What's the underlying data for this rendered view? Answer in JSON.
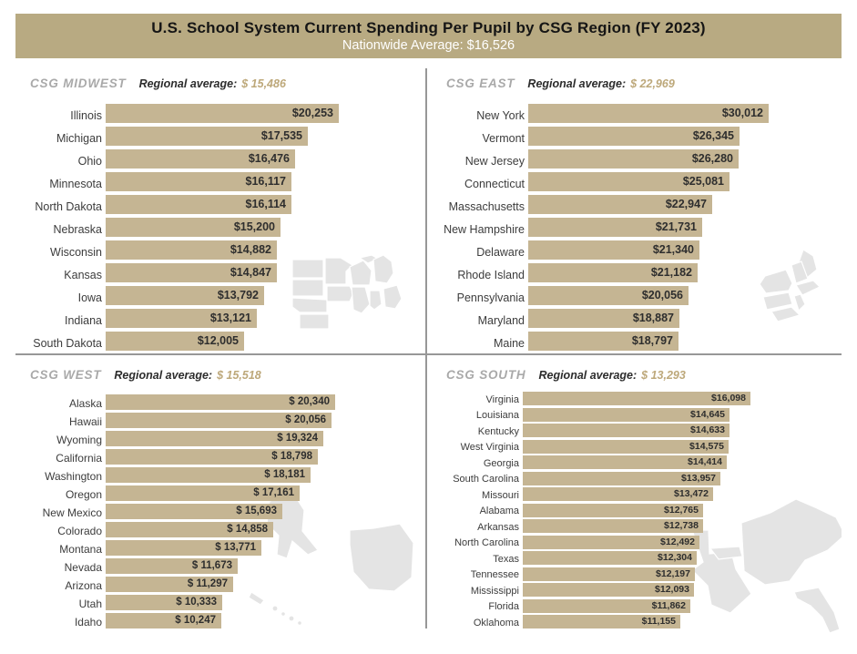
{
  "header": {
    "title": "U.S. School System Current Spending Per Pupil by CSG Region (FY 2023)",
    "subtitle": "Nationwide Average: $16,526"
  },
  "colors": {
    "header_bg": "#b8aa82",
    "bar": "#c5b593",
    "accent_text": "#bda87a",
    "region_label": "#a9a9a9",
    "divider": "#979797",
    "map": "#e4e4e4"
  },
  "chart_data": [
    {
      "type": "bar",
      "title": "CSG MIDWEST",
      "avg_label": "Regional average:",
      "avg_value": "$ 15,486",
      "categories": [
        "Illinois",
        "Michigan",
        "Ohio",
        "Minnesota",
        "North Dakota",
        "Nebraska",
        "Wisconsin",
        "Kansas",
        "Iowa",
        "Indiana",
        "South Dakota"
      ],
      "values": [
        20253,
        17535,
        16476,
        16117,
        16114,
        15200,
        14882,
        14847,
        13792,
        13121,
        12005
      ],
      "value_labels": [
        "$20,253",
        "$17,535",
        "$16,476",
        "$16,117",
        "$16,114",
        "$15,200",
        "$14,882",
        "$14,847",
        "$13,792",
        "$13,121",
        "$12,005"
      ],
      "xlim": [
        0,
        20253
      ],
      "legend": "none",
      "grid": false
    },
    {
      "type": "bar",
      "title": "CSG EAST",
      "avg_label": "Regional average:",
      "avg_value": "$ 22,969",
      "categories": [
        "New York",
        "Vermont",
        "New Jersey",
        "Connecticut",
        "Massachusetts",
        "New Hampshire",
        "Delaware",
        "Rhode Island",
        "Pennsylvania",
        "Maryland",
        "Maine"
      ],
      "values": [
        30012,
        26345,
        26280,
        25081,
        22947,
        21731,
        21340,
        21182,
        20056,
        18887,
        18797
      ],
      "value_labels": [
        "$30,012",
        "$26,345",
        "$26,280",
        "$25,081",
        "$22,947",
        "$21,731",
        "$21,340",
        "$21,182",
        "$20,056",
        "$18,887",
        "$18,797"
      ],
      "xlim": [
        0,
        30012
      ],
      "legend": "none",
      "grid": false
    },
    {
      "type": "bar",
      "title": "CSG WEST",
      "avg_label": "Regional average:",
      "avg_value": "$ 15,518",
      "categories": [
        "Alaska",
        "Hawaii",
        "Wyoming",
        "California",
        "Washington",
        "Oregon",
        "New Mexico",
        "Colorado",
        "Montana",
        "Nevada",
        "Arizona",
        "Utah",
        "Idaho"
      ],
      "values": [
        20340,
        20056,
        19324,
        18798,
        18181,
        17161,
        15693,
        14858,
        13771,
        11673,
        11297,
        10333,
        10247
      ],
      "value_labels": [
        "$ 20,340",
        "$ 20,056",
        "$ 19,324",
        "$ 18,798",
        "$ 18,181",
        "$ 17,161",
        "$ 15,693",
        "$ 14,858",
        "$ 13,771",
        "$ 11,673",
        "$ 11,297",
        "$ 10,333",
        "$ 10,247"
      ],
      "xlim": [
        0,
        20340
      ],
      "legend": "none",
      "grid": false
    },
    {
      "type": "bar",
      "title": "CSG SOUTH",
      "avg_label": "Regional average:",
      "avg_value": "$ 13,293",
      "categories": [
        "Virginia",
        "Louisiana",
        "Kentucky",
        "West Virginia",
        "Georgia",
        "South Carolina",
        "Missouri",
        "Alabama",
        "Arkansas",
        "North Carolina",
        "Texas",
        "Tennessee",
        "Mississippi",
        "Florida",
        "Oklahoma"
      ],
      "values": [
        16098,
        14645,
        14633,
        14575,
        14414,
        13957,
        13472,
        12765,
        12738,
        12492,
        12304,
        12197,
        12093,
        11862,
        11155
      ],
      "value_labels": [
        "$16,098",
        "$14,645",
        "$14,633",
        "$14,575",
        "$14,414",
        "$13,957",
        "$13,472",
        "$12,765",
        "$12,738",
        "$12,492",
        "$12,304",
        "$12,197",
        "$12,093",
        "$11,862",
        "$11,155"
      ],
      "xlim": [
        0,
        16098
      ],
      "legend": "none",
      "grid": false
    }
  ]
}
